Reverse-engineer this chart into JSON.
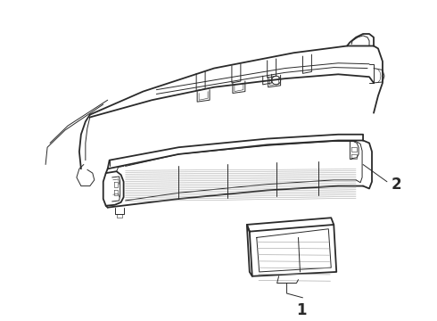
{
  "line_color": "#2a2a2a",
  "label_fontsize": 12,
  "fig_width": 4.9,
  "fig_height": 3.6,
  "dpi": 100,
  "label_1": "1",
  "label_2": "2"
}
